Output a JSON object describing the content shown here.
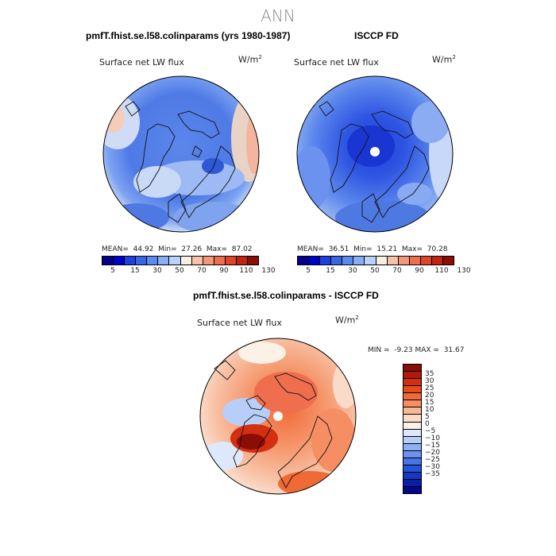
{
  "figure": {
    "season": "ANN"
  },
  "panel_model": {
    "title": "pmfT.fhist.se.l58.colinparams (yrs 1980-1987)",
    "variable": "Surface net LW flux",
    "units_base": "W/m",
    "units_exp": "2",
    "mean_label": "MEAN=",
    "mean_value": "44.92",
    "min_label": "Min=",
    "min_value": "27.26",
    "max_label": "Max=",
    "max_value": "87.02"
  },
  "panel_obs": {
    "title": "ISCCP FD",
    "variable": "Surface net LW flux",
    "units_base": "W/m",
    "units_exp": "2",
    "mean_label": "MEAN=",
    "mean_value": "36.51",
    "min_label": "Min=",
    "min_value": "15.21",
    "max_label": "Max=",
    "max_value": "70.28"
  },
  "panel_diff": {
    "title": "pmfT.fhist.se.l58.colinparams - ISCCP FD",
    "variable": "Surface net LW flux",
    "units_base": "W/m",
    "units_exp": "2",
    "min_label": "MIN =",
    "min_value": "-9.23",
    "max_label": "MAX =",
    "max_value": "31.67"
  },
  "colorbar_abs": {
    "ticks": [
      "5",
      "15",
      "30",
      "50",
      "70",
      "90",
      "110",
      "130"
    ],
    "colors": [
      "#00008b",
      "#0000cd",
      "#1f3fe0",
      "#3a66e6",
      "#5a8bf0",
      "#87aef7",
      "#b9d2fb",
      "#f7efe2",
      "#f6c2aa",
      "#f2987a",
      "#ee6e4e",
      "#e0452a",
      "#c42312",
      "#8b0d05"
    ]
  },
  "colorbar_diff": {
    "ticks": [
      "35",
      "30",
      "25",
      "20",
      "15",
      "10",
      "5",
      "0",
      "−5",
      "−10",
      "−15",
      "−20",
      "−25",
      "−30",
      "−35"
    ],
    "colors": [
      "#8b0d05",
      "#b01a08",
      "#d23010",
      "#e84a18",
      "#f06a36",
      "#f58e62",
      "#f8b796",
      "#fadbc8",
      "#fbf1e6",
      "#dde8fb",
      "#b7cff8",
      "#8eb0f3",
      "#6a92ee",
      "#4574e7",
      "#2553dc",
      "#1636c8",
      "#0a1fa8",
      "#00088b"
    ]
  }
}
